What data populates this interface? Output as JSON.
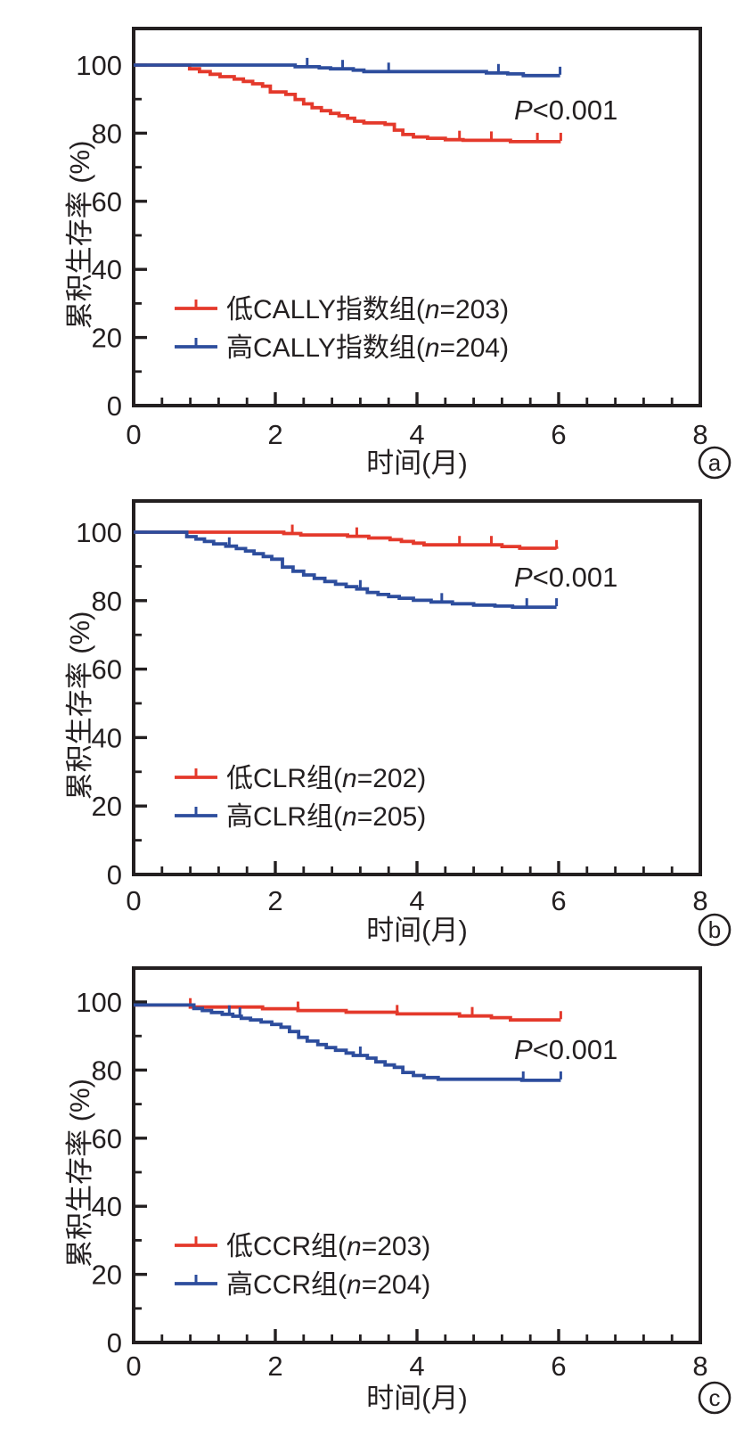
{
  "figure_title": "",
  "colors": {
    "red": "#e4392b",
    "blue": "#2d4d9d",
    "axis": "#231f20",
    "text": "#231f20",
    "background": "#ffffff"
  },
  "chart_data": [
    {
      "type": "line",
      "subtype": "kaplan-meier-step",
      "panel_label": "a",
      "xlabel": "时间(月)",
      "ylabel": "累积生存率 (%)",
      "xlim": [
        0,
        8
      ],
      "ylim": [
        0,
        110
      ],
      "x_ticks": [
        "0",
        "2",
        "4",
        "6",
        "8"
      ],
      "y_ticks": [
        "0",
        "20",
        "40",
        "60",
        "80",
        "100"
      ],
      "x_minor_step": 0.4,
      "y_minor_step": 10,
      "grid": false,
      "legend_position": "lower-left",
      "annotation": {
        "full": "P<0.001",
        "italic": "P",
        "rest": "<0.001"
      },
      "series": [
        {
          "name": "低CALLY指数组(n=203)",
          "name_pre": "低CALLY指数组(",
          "name_n": "n",
          "name_post": "=203)",
          "n": 203,
          "color_key": "red",
          "steps": [
            [
              0,
              100
            ],
            [
              0.79,
              98.9
            ],
            [
              0.93,
              98.1
            ],
            [
              1.08,
              97.3
            ],
            [
              1.22,
              96.6
            ],
            [
              1.42,
              95.9
            ],
            [
              1.55,
              95.2
            ],
            [
              1.68,
              94.5
            ],
            [
              1.82,
              93.8
            ],
            [
              1.93,
              92.1
            ],
            [
              2.15,
              91.4
            ],
            [
              2.28,
              89.9
            ],
            [
              2.4,
              88.6
            ],
            [
              2.52,
              87.5
            ],
            [
              2.65,
              86.6
            ],
            [
              2.78,
              85.8
            ],
            [
              2.9,
              85.1
            ],
            [
              3.02,
              84.4
            ],
            [
              3.12,
              83.5
            ],
            [
              3.25,
              83.0
            ],
            [
              3.55,
              82.6
            ],
            [
              3.68,
              80.9
            ],
            [
              3.8,
              79.6
            ],
            [
              3.95,
              78.9
            ],
            [
              4.15,
              78.5
            ],
            [
              4.4,
              78.1
            ],
            [
              4.65,
              77.9
            ],
            [
              5.32,
              77.5
            ],
            [
              6.03,
              77.5
            ]
          ],
          "censor_x": [
            4.6,
            5.05,
            5.7,
            6.03
          ]
        },
        {
          "name": "高CALLY指数组(n=204)",
          "name_pre": "高CALLY指数组(",
          "name_n": "n",
          "name_post": "=204)",
          "n": 204,
          "color_key": "blue",
          "steps": [
            [
              0,
              100
            ],
            [
              2.28,
              99.5
            ],
            [
              2.62,
              99.2
            ],
            [
              2.78,
              98.9
            ],
            [
              3.1,
              98.5
            ],
            [
              3.25,
              98.1
            ],
            [
              4.98,
              97.7
            ],
            [
              5.28,
              97.4
            ],
            [
              5.5,
              96.9
            ],
            [
              6.02,
              96.9
            ]
          ],
          "censor_x": [
            2.45,
            2.95,
            3.6,
            5.15,
            6.02
          ]
        }
      ]
    },
    {
      "type": "line",
      "subtype": "kaplan-meier-step",
      "panel_label": "b",
      "xlabel": "时间(月)",
      "ylabel": "累积生存率 (%)",
      "xlim": [
        0,
        8
      ],
      "ylim": [
        0,
        110
      ],
      "x_ticks": [
        "0",
        "2",
        "4",
        "6",
        "8"
      ],
      "y_ticks": [
        "0",
        "20",
        "40",
        "60",
        "80",
        "100"
      ],
      "x_minor_step": 0.4,
      "y_minor_step": 10,
      "grid": false,
      "legend_position": "lower-left",
      "annotation": {
        "full": "P<0.001",
        "italic": "P",
        "rest": "<0.001"
      },
      "series": [
        {
          "name": "低CLR组(n=202)",
          "name_pre": "低CLR组(",
          "name_n": "n",
          "name_post": "=202)",
          "n": 202,
          "color_key": "red",
          "steps": [
            [
              0,
              100
            ],
            [
              2.12,
              99.6
            ],
            [
              2.36,
              99.2
            ],
            [
              3.02,
              98.8
            ],
            [
              3.32,
              98.3
            ],
            [
              3.62,
              97.8
            ],
            [
              3.78,
              97.3
            ],
            [
              3.95,
              96.8
            ],
            [
              4.1,
              96.3
            ],
            [
              5.2,
              95.8
            ],
            [
              5.45,
              95.3
            ],
            [
              5.97,
              95.1
            ]
          ],
          "censor_x": [
            2.24,
            3.15,
            4.6,
            5.05,
            5.97
          ]
        },
        {
          "name": "高CLR组(n=205)",
          "name_pre": "高CLR组(",
          "name_n": "n",
          "name_post": "=205)",
          "n": 205,
          "color_key": "blue",
          "steps": [
            [
              0,
              100
            ],
            [
              0.75,
              98.7
            ],
            [
              0.88,
              98.0
            ],
            [
              1.0,
              97.3
            ],
            [
              1.13,
              96.6
            ],
            [
              1.3,
              95.9
            ],
            [
              1.45,
              95.2
            ],
            [
              1.58,
              94.5
            ],
            [
              1.7,
              93.7
            ],
            [
              1.83,
              92.9
            ],
            [
              1.95,
              92.1
            ],
            [
              2.1,
              89.8
            ],
            [
              2.25,
              88.6
            ],
            [
              2.4,
              87.5
            ],
            [
              2.55,
              86.5
            ],
            [
              2.7,
              85.6
            ],
            [
              2.85,
              84.8
            ],
            [
              3.0,
              84.1
            ],
            [
              3.15,
              83.4
            ],
            [
              3.3,
              82.4
            ],
            [
              3.45,
              81.8
            ],
            [
              3.6,
              81.2
            ],
            [
              3.75,
              80.7
            ],
            [
              3.95,
              80.1
            ],
            [
              4.2,
              79.6
            ],
            [
              4.5,
              79.1
            ],
            [
              4.8,
              78.7
            ],
            [
              5.1,
              78.4
            ],
            [
              5.35,
              78.1
            ],
            [
              5.97,
              78.1
            ]
          ],
          "censor_x": [
            1.35,
            3.2,
            4.35,
            5.55,
            5.97
          ]
        }
      ]
    },
    {
      "type": "line",
      "subtype": "kaplan-meier-step",
      "panel_label": "c",
      "xlabel": "时间(月)",
      "ylabel": "累积生存率 (%)",
      "xlim": [
        0,
        8
      ],
      "ylim": [
        0,
        110
      ],
      "x_ticks": [
        "0",
        "2",
        "4",
        "6",
        "8"
      ],
      "y_ticks": [
        "0",
        "20",
        "40",
        "60",
        "80",
        "100"
      ],
      "x_minor_step": 0.4,
      "y_minor_step": 10,
      "grid": false,
      "legend_position": "lower-left",
      "annotation": {
        "full": "P<0.001",
        "italic": "P",
        "rest": "<0.001"
      },
      "series": [
        {
          "name": "低CCR组(n=203)",
          "name_pre": "低CCR组(",
          "name_n": "n",
          "name_post": "=203)",
          "n": 203,
          "color_key": "red",
          "steps": [
            [
              0,
              99.1
            ],
            [
              0.8,
              98.5
            ],
            [
              1.82,
              98.0
            ],
            [
              2.32,
              97.5
            ],
            [
              3.0,
              97.0
            ],
            [
              3.72,
              96.5
            ],
            [
              4.6,
              95.9
            ],
            [
              5.05,
              95.4
            ],
            [
              5.32,
              94.7
            ],
            [
              6.03,
              94.7
            ]
          ],
          "censor_x": [
            0.8,
            2.32,
            3.72,
            4.78,
            6.03
          ]
        },
        {
          "name": "高CCR组(n=204)",
          "name_pre": "高CCR组(",
          "name_n": "n",
          "name_post": "=204)",
          "n": 204,
          "color_key": "blue",
          "steps": [
            [
              0,
              99.1
            ],
            [
              0.85,
              98.1
            ],
            [
              0.97,
              97.5
            ],
            [
              1.1,
              96.9
            ],
            [
              1.25,
              96.4
            ],
            [
              1.4,
              95.8
            ],
            [
              1.52,
              95.2
            ],
            [
              1.65,
              94.7
            ],
            [
              1.8,
              94.1
            ],
            [
              1.95,
              93.4
            ],
            [
              2.08,
              92.6
            ],
            [
              2.2,
              91.3
            ],
            [
              2.33,
              89.6
            ],
            [
              2.45,
              88.5
            ],
            [
              2.6,
              87.5
            ],
            [
              2.72,
              86.6
            ],
            [
              2.85,
              85.8
            ],
            [
              3.0,
              85.0
            ],
            [
              3.1,
              84.3
            ],
            [
              3.3,
              83.5
            ],
            [
              3.42,
              82.4
            ],
            [
              3.55,
              81.5
            ],
            [
              3.68,
              80.8
            ],
            [
              3.8,
              79.3
            ],
            [
              3.95,
              78.4
            ],
            [
              4.1,
              77.8
            ],
            [
              4.3,
              77.3
            ],
            [
              5.48,
              77.0
            ],
            [
              6.03,
              77.0
            ]
          ],
          "censor_x": [
            1.35,
            1.5,
            3.2,
            5.5,
            6.03
          ]
        }
      ]
    }
  ]
}
